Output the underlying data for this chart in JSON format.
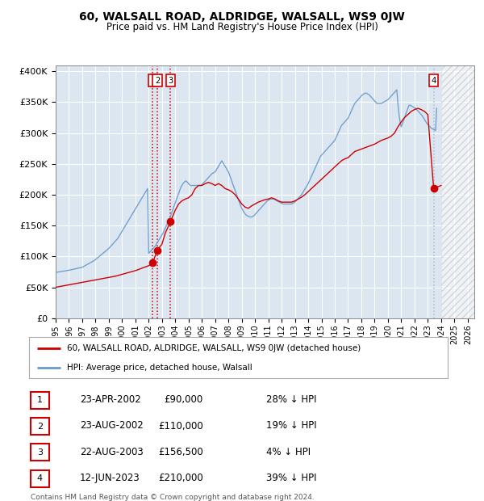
{
  "title": "60, WALSALL ROAD, ALDRIDGE, WALSALL, WS9 0JW",
  "subtitle": "Price paid vs. HM Land Registry's House Price Index (HPI)",
  "xlim_start": 1995.0,
  "xlim_end": 2026.5,
  "ylim": [
    0,
    410000
  ],
  "yticks": [
    0,
    50000,
    100000,
    150000,
    200000,
    250000,
    300000,
    350000,
    400000
  ],
  "ytick_labels": [
    "£0",
    "£50K",
    "£100K",
    "£150K",
    "£200K",
    "£250K",
    "£300K",
    "£350K",
    "£400K"
  ],
  "sale_dates_num": [
    2002.31,
    2002.64,
    2003.64,
    2023.44
  ],
  "sale_prices": [
    90000,
    110000,
    156500,
    210000
  ],
  "sale_labels": [
    "1",
    "2",
    "3",
    "4"
  ],
  "vline_colors": [
    "#cc0000",
    "#cc0000",
    "#cc0000",
    "#aabbcc"
  ],
  "sale_dot_color": "#cc0000",
  "hpi_line_color": "#6699cc",
  "price_line_color": "#cc0000",
  "plot_bg_color": "#dce6f1",
  "fig_bg_color": "#ffffff",
  "grid_color": "#ffffff",
  "legend_entries": [
    "60, WALSALL ROAD, ALDRIDGE, WALSALL, WS9 0JW (detached house)",
    "HPI: Average price, detached house, Walsall"
  ],
  "table_rows": [
    [
      "1",
      "23-APR-2002",
      "£90,000",
      "28% ↓ HPI"
    ],
    [
      "2",
      "23-AUG-2002",
      "£110,000",
      "19% ↓ HPI"
    ],
    [
      "3",
      "22-AUG-2003",
      "£156,500",
      "4% ↓ HPI"
    ],
    [
      "4",
      "12-JUN-2023",
      "£210,000",
      "39% ↓ HPI"
    ]
  ],
  "footnote": "Contains HM Land Registry data © Crown copyright and database right 2024.\nThis data is licensed under the Open Government Licence v3.0.",
  "hatch_x_start": 2024.0,
  "hatch_x_end": 2026.5,
  "hpi_x": [
    1995.0,
    1995.083,
    1995.167,
    1995.25,
    1995.333,
    1995.417,
    1995.5,
    1995.583,
    1995.667,
    1995.75,
    1995.833,
    1995.917,
    1996.0,
    1996.083,
    1996.167,
    1996.25,
    1996.333,
    1996.417,
    1996.5,
    1996.583,
    1996.667,
    1996.75,
    1996.833,
    1996.917,
    1997.0,
    1997.083,
    1997.167,
    1997.25,
    1997.333,
    1997.417,
    1997.5,
    1997.583,
    1997.667,
    1997.75,
    1997.833,
    1997.917,
    1998.0,
    1998.083,
    1998.167,
    1998.25,
    1998.333,
    1998.417,
    1998.5,
    1998.583,
    1998.667,
    1998.75,
    1998.833,
    1998.917,
    1999.0,
    1999.083,
    1999.167,
    1999.25,
    1999.333,
    1999.417,
    1999.5,
    1999.583,
    1999.667,
    1999.75,
    1999.833,
    1999.917,
    2000.0,
    2000.083,
    2000.167,
    2000.25,
    2000.333,
    2000.417,
    2000.5,
    2000.583,
    2000.667,
    2000.75,
    2000.833,
    2000.917,
    2001.0,
    2001.083,
    2001.167,
    2001.25,
    2001.333,
    2001.417,
    2001.5,
    2001.583,
    2001.667,
    2001.75,
    2001.833,
    2001.917,
    2002.0,
    2002.083,
    2002.167,
    2002.25,
    2002.333,
    2002.417,
    2002.5,
    2002.583,
    2002.667,
    2002.75,
    2002.833,
    2002.917,
    2003.0,
    2003.083,
    2003.167,
    2003.25,
    2003.333,
    2003.417,
    2003.5,
    2003.583,
    2003.667,
    2003.75,
    2003.833,
    2003.917,
    2004.0,
    2004.083,
    2004.167,
    2004.25,
    2004.333,
    2004.417,
    2004.5,
    2004.583,
    2004.667,
    2004.75,
    2004.833,
    2004.917,
    2005.0,
    2005.083,
    2005.167,
    2005.25,
    2005.333,
    2005.417,
    2005.5,
    2005.583,
    2005.667,
    2005.75,
    2005.833,
    2005.917,
    2006.0,
    2006.083,
    2006.167,
    2006.25,
    2006.333,
    2006.417,
    2006.5,
    2006.583,
    2006.667,
    2006.75,
    2006.833,
    2006.917,
    2007.0,
    2007.083,
    2007.167,
    2007.25,
    2007.333,
    2007.417,
    2007.5,
    2007.583,
    2007.667,
    2007.75,
    2007.833,
    2007.917,
    2008.0,
    2008.083,
    2008.167,
    2008.25,
    2008.333,
    2008.417,
    2008.5,
    2008.583,
    2008.667,
    2008.75,
    2008.833,
    2008.917,
    2009.0,
    2009.083,
    2009.167,
    2009.25,
    2009.333,
    2009.417,
    2009.5,
    2009.583,
    2009.667,
    2009.75,
    2009.833,
    2009.917,
    2010.0,
    2010.083,
    2010.167,
    2010.25,
    2010.333,
    2010.417,
    2010.5,
    2010.583,
    2010.667,
    2010.75,
    2010.833,
    2010.917,
    2011.0,
    2011.083,
    2011.167,
    2011.25,
    2011.333,
    2011.417,
    2011.5,
    2011.583,
    2011.667,
    2011.75,
    2011.833,
    2011.917,
    2012.0,
    2012.083,
    2012.167,
    2012.25,
    2012.333,
    2012.417,
    2012.5,
    2012.583,
    2012.667,
    2012.75,
    2012.833,
    2012.917,
    2013.0,
    2013.083,
    2013.167,
    2013.25,
    2013.333,
    2013.417,
    2013.5,
    2013.583,
    2013.667,
    2013.75,
    2013.833,
    2013.917,
    2014.0,
    2014.083,
    2014.167,
    2014.25,
    2014.333,
    2014.417,
    2014.5,
    2014.583,
    2014.667,
    2014.75,
    2014.833,
    2014.917,
    2015.0,
    2015.083,
    2015.167,
    2015.25,
    2015.333,
    2015.417,
    2015.5,
    2015.583,
    2015.667,
    2015.75,
    2015.833,
    2015.917,
    2016.0,
    2016.083,
    2016.167,
    2016.25,
    2016.333,
    2016.417,
    2016.5,
    2016.583,
    2016.667,
    2016.75,
    2016.833,
    2016.917,
    2017.0,
    2017.083,
    2017.167,
    2017.25,
    2017.333,
    2017.417,
    2017.5,
    2017.583,
    2017.667,
    2017.75,
    2017.833,
    2017.917,
    2018.0,
    2018.083,
    2018.167,
    2018.25,
    2018.333,
    2018.417,
    2018.5,
    2018.583,
    2018.667,
    2018.75,
    2018.833,
    2018.917,
    2019.0,
    2019.083,
    2019.167,
    2019.25,
    2019.333,
    2019.417,
    2019.5,
    2019.583,
    2019.667,
    2019.75,
    2019.833,
    2019.917,
    2020.0,
    2020.083,
    2020.167,
    2020.25,
    2020.333,
    2020.417,
    2020.5,
    2020.583,
    2020.667,
    2020.75,
    2020.833,
    2020.917,
    2021.0,
    2021.083,
    2021.167,
    2021.25,
    2021.333,
    2021.417,
    2021.5,
    2021.583,
    2021.667,
    2021.75,
    2021.833,
    2021.917,
    2022.0,
    2022.083,
    2022.167,
    2022.25,
    2022.333,
    2022.417,
    2022.5,
    2022.583,
    2022.667,
    2022.75,
    2022.833,
    2022.917,
    2023.0,
    2023.083,
    2023.167,
    2023.25,
    2023.333,
    2023.417,
    2023.5,
    2023.583,
    2023.667,
    2023.75,
    2023.833,
    2023.917,
    2024.0
  ],
  "hpi_y": [
    74000,
    74300,
    74600,
    74900,
    75200,
    75500,
    75800,
    76100,
    76400,
    76700,
    77000,
    77300,
    77600,
    78000,
    78400,
    78800,
    79200,
    79600,
    80000,
    80400,
    80800,
    81200,
    81600,
    82000,
    82500,
    83500,
    84500,
    85500,
    86500,
    87500,
    88500,
    89500,
    90500,
    91500,
    92500,
    93500,
    95000,
    96500,
    98000,
    99500,
    101000,
    102500,
    104000,
    105500,
    107000,
    108500,
    110000,
    111500,
    113000,
    115000,
    117000,
    119000,
    121000,
    123000,
    125000,
    127000,
    129000,
    132000,
    135000,
    138000,
    141000,
    144000,
    147000,
    150000,
    153000,
    156000,
    159000,
    162000,
    165000,
    168000,
    171000,
    174000,
    177000,
    180000,
    183000,
    186000,
    189000,
    192000,
    195000,
    198000,
    201000,
    204000,
    207000,
    210000,
    105000,
    107000,
    109000,
    111000,
    113000,
    115000,
    117000,
    120000,
    123000,
    126000,
    129000,
    132000,
    135000,
    138000,
    142000,
    146000,
    150000,
    154000,
    158000,
    162000,
    167000,
    172000,
    177000,
    182000,
    187000,
    192000,
    197000,
    202000,
    207000,
    212000,
    215000,
    218000,
    220000,
    222000,
    222000,
    220000,
    218000,
    216000,
    215000,
    215000,
    215000,
    215000,
    215000,
    215000,
    215000,
    215000,
    215000,
    215000,
    216000,
    218000,
    220000,
    222000,
    224000,
    226000,
    228000,
    230000,
    232000,
    234000,
    235000,
    236000,
    237000,
    240000,
    243000,
    246000,
    249000,
    252000,
    255000,
    252000,
    249000,
    246000,
    243000,
    240000,
    237000,
    232000,
    227000,
    222000,
    217000,
    212000,
    207000,
    202000,
    197000,
    192000,
    187000,
    182000,
    178000,
    175000,
    172000,
    169000,
    167000,
    166000,
    165000,
    164000,
    164000,
    164000,
    165000,
    166000,
    168000,
    170000,
    172000,
    174000,
    176000,
    178000,
    180000,
    182000,
    184000,
    186000,
    188000,
    190000,
    191000,
    192000,
    193000,
    193000,
    193000,
    193000,
    192000,
    191000,
    190000,
    189000,
    188000,
    187000,
    186000,
    185000,
    185000,
    185000,
    185000,
    185000,
    185000,
    185000,
    185000,
    185000,
    186000,
    187000,
    188000,
    190000,
    192000,
    194000,
    196000,
    198000,
    200000,
    203000,
    206000,
    209000,
    212000,
    215000,
    218000,
    222000,
    226000,
    230000,
    234000,
    238000,
    242000,
    246000,
    250000,
    254000,
    258000,
    262000,
    264000,
    266000,
    268000,
    270000,
    272000,
    274000,
    276000,
    278000,
    280000,
    282000,
    284000,
    286000,
    288000,
    292000,
    296000,
    300000,
    304000,
    308000,
    312000,
    314000,
    316000,
    318000,
    320000,
    322000,
    324000,
    328000,
    332000,
    336000,
    340000,
    344000,
    348000,
    350000,
    352000,
    354000,
    356000,
    358000,
    360000,
    362000,
    363000,
    364000,
    365000,
    364000,
    363000,
    362000,
    360000,
    358000,
    356000,
    354000,
    352000,
    350000,
    348000,
    348000,
    348000,
    348000,
    348000,
    349000,
    350000,
    351000,
    352000,
    353000,
    354000,
    356000,
    358000,
    360000,
    362000,
    364000,
    366000,
    368000,
    370000,
    348000,
    330000,
    318000,
    310000,
    315000,
    320000,
    325000,
    330000,
    335000,
    340000,
    345000,
    345000,
    344000,
    343000,
    342000,
    341000,
    340000,
    338000,
    336000,
    334000,
    332000,
    330000,
    328000,
    325000,
    322000,
    319000,
    316000,
    314000,
    312000,
    310000,
    308000,
    307000,
    306000,
    305000,
    304000,
    340000
  ],
  "price_x": [
    1995.0,
    1995.25,
    1995.5,
    1995.75,
    1996.0,
    1996.25,
    1996.5,
    1996.75,
    1997.0,
    1997.25,
    1997.5,
    1997.75,
    1998.0,
    1998.25,
    1998.5,
    1998.75,
    1999.0,
    1999.25,
    1999.5,
    1999.75,
    2000.0,
    2000.25,
    2000.5,
    2000.75,
    2001.0,
    2001.25,
    2001.5,
    2001.75,
    2002.0,
    2002.31,
    2002.64,
    2003.0,
    2003.25,
    2003.64,
    2004.0,
    2004.25,
    2004.5,
    2004.75,
    2005.0,
    2005.25,
    2005.5,
    2005.75,
    2006.0,
    2006.25,
    2006.5,
    2006.75,
    2007.0,
    2007.25,
    2007.5,
    2007.75,
    2008.0,
    2008.25,
    2008.5,
    2008.75,
    2009.0,
    2009.25,
    2009.5,
    2009.75,
    2010.0,
    2010.25,
    2010.5,
    2010.75,
    2011.0,
    2011.25,
    2011.5,
    2011.75,
    2012.0,
    2012.25,
    2012.5,
    2012.75,
    2013.0,
    2013.25,
    2013.5,
    2013.75,
    2014.0,
    2014.25,
    2014.5,
    2014.75,
    2015.0,
    2015.25,
    2015.5,
    2015.75,
    2016.0,
    2016.25,
    2016.5,
    2016.75,
    2017.0,
    2017.25,
    2017.5,
    2017.75,
    2018.0,
    2018.25,
    2018.5,
    2018.75,
    2019.0,
    2019.25,
    2019.5,
    2019.75,
    2020.0,
    2020.25,
    2020.5,
    2020.75,
    2021.0,
    2021.25,
    2021.5,
    2021.75,
    2022.0,
    2022.25,
    2022.5,
    2022.75,
    2023.0,
    2023.44,
    2024.0
  ],
  "price_y": [
    50000,
    51000,
    52000,
    53000,
    54000,
    55000,
    56000,
    57000,
    58000,
    59000,
    60000,
    61000,
    62000,
    63000,
    64000,
    65000,
    66000,
    67000,
    68000,
    69500,
    71000,
    72500,
    74000,
    75500,
    77000,
    79000,
    81000,
    83000,
    85000,
    90000,
    110000,
    120000,
    138000,
    156500,
    175000,
    185000,
    190000,
    193000,
    195000,
    200000,
    210000,
    215000,
    215000,
    218000,
    220000,
    218000,
    215000,
    218000,
    215000,
    210000,
    208000,
    205000,
    200000,
    193000,
    185000,
    180000,
    178000,
    182000,
    185000,
    188000,
    190000,
    192000,
    193000,
    195000,
    193000,
    190000,
    188000,
    188000,
    188000,
    188000,
    190000,
    193000,
    196000,
    200000,
    205000,
    210000,
    215000,
    220000,
    225000,
    230000,
    235000,
    240000,
    245000,
    250000,
    255000,
    258000,
    260000,
    265000,
    270000,
    272000,
    274000,
    276000,
    278000,
    280000,
    282000,
    285000,
    288000,
    290000,
    292000,
    295000,
    300000,
    310000,
    318000,
    325000,
    330000,
    335000,
    338000,
    340000,
    338000,
    335000,
    330000,
    210000,
    215000
  ]
}
